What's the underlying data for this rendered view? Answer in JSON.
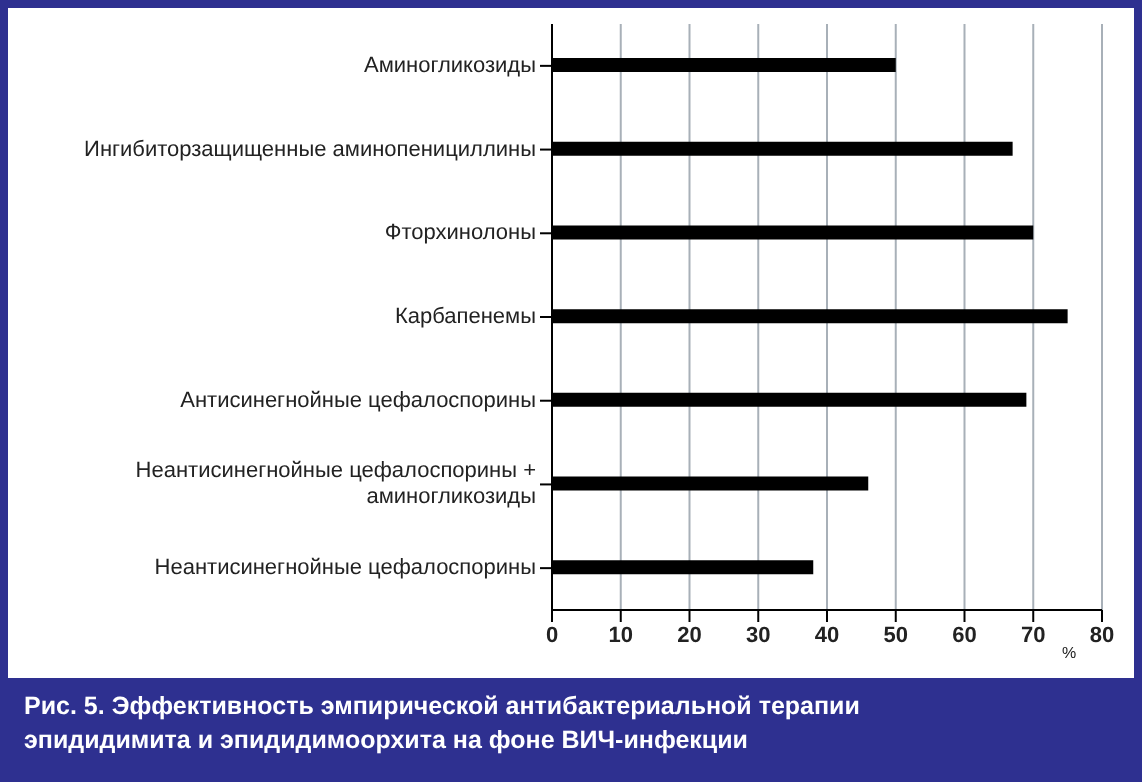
{
  "chart_data": {
    "type": "bar",
    "orientation": "horizontal",
    "title": "Рис. 5. Эффективность эмпирической антибактериальной терапии эпидидимита и эпидидимоорхита на фоне ВИЧ-инфекции",
    "xlabel": "%",
    "categories": [
      "Аминогликозиды",
      "Ингибиторзащищенные аминопенициллины",
      "Фторхинолоны",
      "Карбапенемы",
      "Антисинегнойные цефалоспорины",
      "Неантисинегнойные цефалоспорины + аминогликозиды",
      "Неантисинегнойные цефалоспорины"
    ],
    "values": [
      50,
      67,
      70,
      75,
      69,
      46,
      38
    ],
    "color": "#000000",
    "xlim": [
      0,
      80
    ],
    "xticks": [
      0,
      10,
      20,
      30,
      40,
      50,
      60,
      70,
      80
    ],
    "grid": "x"
  }
}
